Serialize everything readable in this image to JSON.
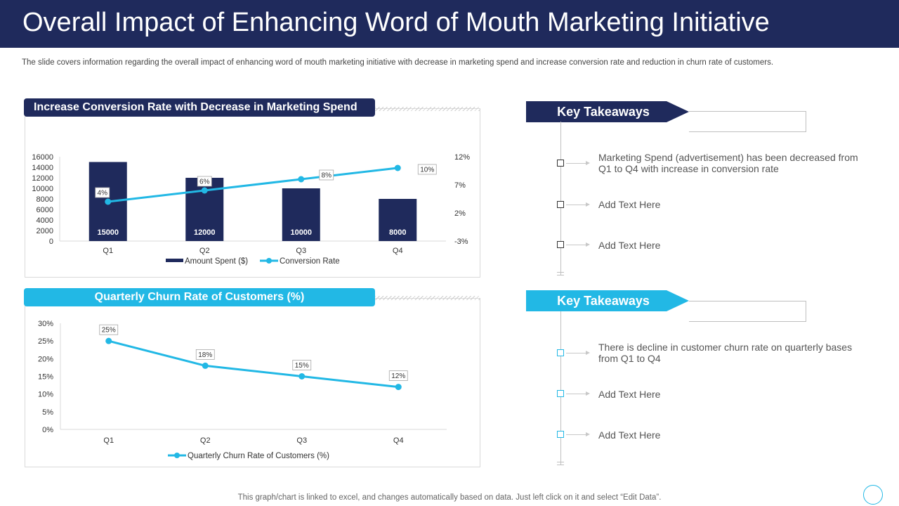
{
  "page": {
    "title": "Overall Impact of Enhancing Word of Mouth Marketing Initiative",
    "subtitle": "The slide covers information regarding the overall impact of enhancing word of mouth marketing initiative with decrease in marketing spend and increase conversion rate and reduction in churn rate of customers.",
    "footer": "This graph/chart is linked to excel,  and changes automatically based on data. Just left click on it and select “Edit Data”."
  },
  "colors": {
    "navy": "#1f2a5c",
    "cyan": "#22b8e5"
  },
  "chart_data": [
    {
      "type": "bar",
      "title": "Increase Conversion Rate with Decrease in Marketing Spend",
      "categories": [
        "Q1",
        "Q2",
        "Q3",
        "Q4"
      ],
      "series": [
        {
          "name": "Amount Spent ($)",
          "kind": "bar",
          "axis": "left",
          "values": [
            15000,
            12000,
            10000,
            8000
          ],
          "labels": [
            "15000",
            "12000",
            "10000",
            "8000"
          ]
        },
        {
          "name": "Conversion Rate",
          "kind": "line",
          "axis": "right",
          "values": [
            4,
            6,
            8,
            10
          ],
          "labels": [
            "4%",
            "6%",
            "8%",
            "10%"
          ]
        }
      ],
      "ylim": [
        0,
        16000
      ],
      "yticks": [
        "0",
        "2000",
        "4000",
        "6000",
        "8000",
        "10000",
        "12000",
        "14000",
        "16000"
      ],
      "y2lim": [
        -3,
        12
      ],
      "y2ticks": [
        "-3%",
        "2%",
        "7%",
        "12%"
      ],
      "legend": "bottom"
    },
    {
      "type": "line",
      "title": "Quarterly Churn Rate of Customers (%)",
      "categories": [
        "Q1",
        "Q2",
        "Q3",
        "Q4"
      ],
      "series": [
        {
          "name": "Quarterly Churn Rate of Customers (%)",
          "values": [
            25,
            18,
            15,
            12
          ],
          "labels": [
            "25%",
            "18%",
            "15%",
            "12%"
          ]
        }
      ],
      "ylim": [
        0,
        30
      ],
      "yticks": [
        "0%",
        "5%",
        "10%",
        "15%",
        "20%",
        "25%",
        "30%"
      ],
      "legend": "bottom"
    }
  ],
  "takeaways": [
    {
      "heading": "Key Takeaways",
      "items": [
        "Marketing Spend (advertisement) has been decreased from Q1 to Q4 with increase in conversion rate",
        "Add Text Here",
        "Add Text Here"
      ]
    },
    {
      "heading": "Key Takeaways",
      "items": [
        "There is decline in customer churn rate on quarterly bases from Q1 to Q4",
        "Add Text Here",
        "Add Text Here"
      ]
    }
  ]
}
